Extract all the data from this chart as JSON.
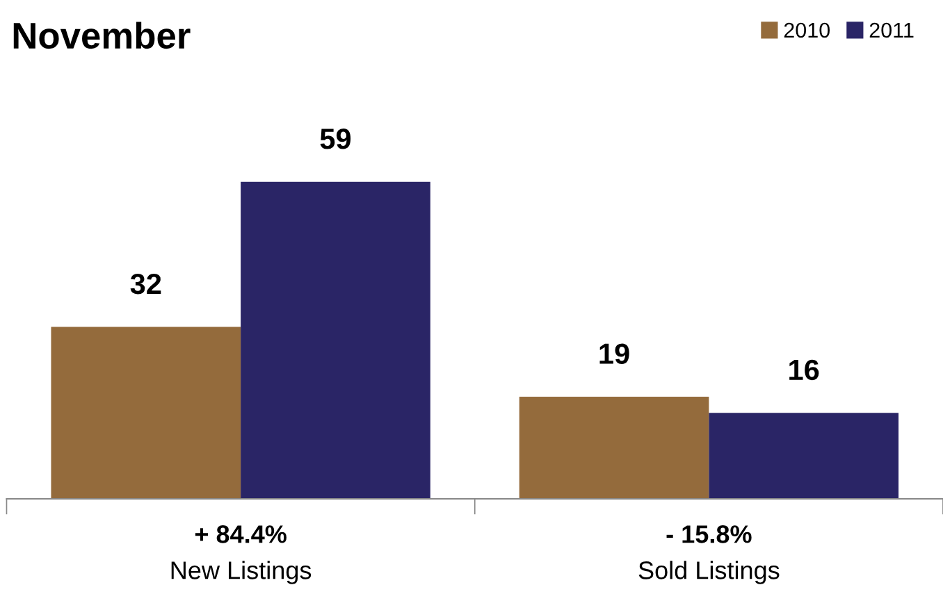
{
  "chart_data": {
    "type": "bar",
    "title": "November",
    "categories": [
      "New Listings",
      "Sold Listings"
    ],
    "series": [
      {
        "name": "2010",
        "color": "#946b3c",
        "values": [
          32,
          19
        ]
      },
      {
        "name": "2011",
        "color": "#2a2566",
        "values": [
          59,
          16
        ]
      }
    ],
    "annotations": [
      "+ 84.4%",
      "- 15.8%"
    ],
    "data_labels": true,
    "legend": "top right",
    "grid": false
  }
}
